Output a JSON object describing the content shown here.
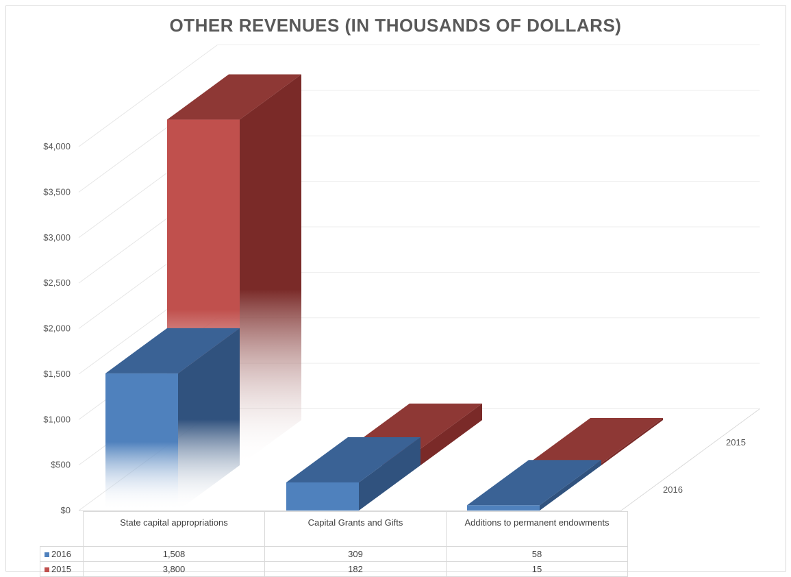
{
  "chart_data": {
    "type": "bar",
    "title": "OTHER REVENUES (IN THOUSANDS OF DOLLARS)",
    "categories": [
      "State capital appropriations",
      "Capital Grants and Gifts",
      "Additions to permanent endowments"
    ],
    "series": [
      {
        "name": "2016",
        "values": [
          1508,
          309,
          58
        ],
        "display": [
          "1,508",
          "309",
          "58"
        ],
        "color": "#4f81bd"
      },
      {
        "name": "2015",
        "values": [
          3800,
          182,
          15
        ],
        "display": [
          "3,800",
          "182",
          "15"
        ],
        "color": "#c0504d"
      }
    ],
    "yticks": [
      "$0",
      "$500",
      "$1,000",
      "$1,500",
      "$2,000",
      "$2,500",
      "$3,000",
      "$3,500",
      "$4,000"
    ],
    "ylim": [
      0,
      4000
    ],
    "grid": true,
    "three_d": true,
    "legend": "data-table"
  }
}
